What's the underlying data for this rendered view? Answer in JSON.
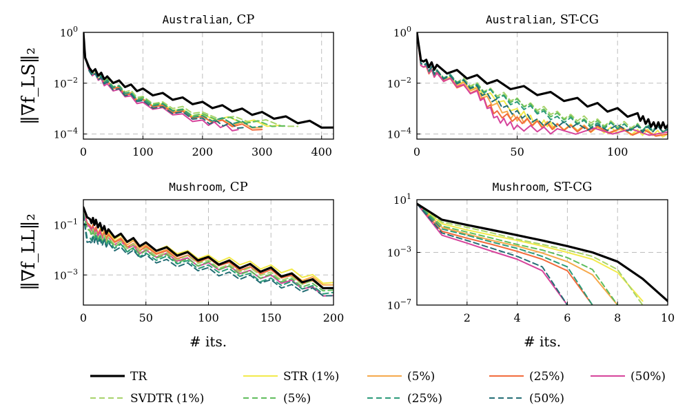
{
  "colors": {
    "TR": "#000000",
    "STR_1": "#f2ea4b",
    "STR_5": "#f6a84a",
    "STR_25": "#f26b3c",
    "STR_50": "#d6439b",
    "SVDTR_1": "#a7d36a",
    "SVDTR_5": "#5fbd5c",
    "SVDTR_25": "#2a9a78",
    "SVDTR_50": "#236d74",
    "grid": "#bdbdbd"
  },
  "labels": {
    "ylabel_top": "‖∇f_LS‖₂",
    "ylabel_bottom": "‖∇f_LL‖₂",
    "xlabel": "# its."
  },
  "legend": [
    {
      "key": "TR",
      "label": "TR",
      "dashed": false
    },
    {
      "key": "STR_1",
      "label": "STR (1%)",
      "dashed": false
    },
    {
      "key": "STR_5",
      "label": "(5%)",
      "dashed": false
    },
    {
      "key": "STR_25",
      "label": "(25%)",
      "dashed": false
    },
    {
      "key": "STR_50",
      "label": "(50%)",
      "dashed": false
    },
    {
      "key": "SVDTR_1",
      "label": "SVDTR (1%)",
      "dashed": true
    },
    {
      "key": "SVDTR_5",
      "label": "(5%)",
      "dashed": true
    },
    {
      "key": "SVDTR_25",
      "label": "(25%)",
      "dashed": true
    },
    {
      "key": "SVDTR_50",
      "label": "(50%)",
      "dashed": true
    }
  ],
  "chart_data": [
    {
      "type": "line",
      "title_dataset": "Australian",
      "title_method": ", CP",
      "xlim": [
        0,
        420
      ],
      "xticks": [
        0,
        100,
        200,
        300,
        400
      ],
      "ylim_log10": [
        -4.2,
        0
      ],
      "yticks_log10": [
        0,
        -2,
        -4
      ],
      "yticklabels": [
        "10^0",
        "10^-2",
        "10^-4"
      ],
      "series": [
        {
          "key": "TR",
          "x": [
            0,
            3,
            10,
            40,
            100,
            200,
            300,
            420
          ],
          "y": [
            1.0,
            0.1,
            0.04,
            0.015,
            0.005,
            0.0015,
            0.0006,
            0.00018
          ]
        },
        {
          "key": "STR_1",
          "x": [
            0,
            3,
            10,
            40,
            100,
            200,
            330
          ],
          "y": [
            0.8,
            0.1,
            0.03,
            0.01,
            0.002,
            0.0005,
            0.00022
          ]
        },
        {
          "key": "STR_5",
          "x": [
            0,
            3,
            10,
            40,
            100,
            200,
            300
          ],
          "y": [
            0.8,
            0.1,
            0.03,
            0.01,
            0.002,
            0.0004,
            0.00018
          ]
        },
        {
          "key": "STR_25",
          "x": [
            0,
            3,
            10,
            40,
            100,
            200,
            300
          ],
          "y": [
            0.8,
            0.1,
            0.03,
            0.01,
            0.0018,
            0.0004,
            0.00015
          ]
        },
        {
          "key": "STR_50",
          "x": [
            0,
            3,
            10,
            40,
            100,
            200,
            260
          ],
          "y": [
            0.8,
            0.1,
            0.03,
            0.008,
            0.0015,
            0.0003,
            0.00015
          ]
        },
        {
          "key": "SVDTR_1",
          "x": [
            0,
            3,
            10,
            40,
            100,
            200,
            360
          ],
          "y": [
            0.8,
            0.1,
            0.035,
            0.012,
            0.0025,
            0.0006,
            0.0002
          ]
        },
        {
          "key": "SVDTR_5",
          "x": [
            0,
            3,
            10,
            40,
            100,
            200,
            340
          ],
          "y": [
            0.8,
            0.1,
            0.035,
            0.011,
            0.0022,
            0.0005,
            0.00021
          ]
        },
        {
          "key": "SVDTR_25",
          "x": [
            0,
            3,
            10,
            40,
            100,
            200,
            300
          ],
          "y": [
            0.8,
            0.1,
            0.035,
            0.011,
            0.002,
            0.00045,
            0.0002
          ]
        },
        {
          "key": "SVDTR_50",
          "x": [
            0,
            3,
            10,
            40,
            100,
            200,
            270
          ],
          "y": [
            0.8,
            0.1,
            0.03,
            0.009,
            0.0017,
            0.00035,
            0.00018
          ]
        }
      ]
    },
    {
      "type": "line",
      "title_dataset": "Australian",
      "title_method": ", ST-CG",
      "xlim": [
        0,
        125
      ],
      "xticks": [
        0,
        50,
        100
      ],
      "ylim_log10": [
        -4.2,
        0
      ],
      "yticks_log10": [
        0,
        -2,
        -4
      ],
      "yticklabels": [
        "10^0",
        "10^-2",
        "10^-4"
      ],
      "series": [
        {
          "key": "TR",
          "x": [
            0,
            2,
            10,
            40,
            80,
            110,
            118,
            125
          ],
          "y": [
            1.0,
            0.08,
            0.04,
            0.01,
            0.002,
            0.0005,
            0.00022,
            0.00022
          ]
        },
        {
          "key": "STR_1",
          "x": [
            0,
            2,
            10,
            30,
            50,
            60,
            70,
            90,
            110,
            125
          ],
          "y": [
            1.0,
            0.05,
            0.02,
            0.006,
            0.0008,
            0.0003,
            0.0002,
            0.00015,
            0.00012,
            0.0001
          ]
        },
        {
          "key": "STR_5",
          "x": [
            0,
            2,
            10,
            30,
            45,
            55,
            70,
            90,
            125
          ],
          "y": [
            1.0,
            0.05,
            0.02,
            0.005,
            0.0006,
            0.0003,
            0.0002,
            0.00015,
            0.0001
          ]
        },
        {
          "key": "STR_25",
          "x": [
            0,
            2,
            10,
            30,
            40,
            55,
            70,
            90,
            125
          ],
          "y": [
            1.0,
            0.05,
            0.02,
            0.004,
            0.0006,
            0.0003,
            0.00018,
            0.00015,
            0.0001
          ]
        },
        {
          "key": "STR_50",
          "x": [
            0,
            2,
            10,
            30,
            40,
            50,
            70,
            125
          ],
          "y": [
            1.0,
            0.05,
            0.02,
            0.004,
            0.0004,
            0.00018,
            0.00013,
            0.00012
          ]
        },
        {
          "key": "SVDTR_1",
          "x": [
            0,
            2,
            10,
            30,
            50,
            70,
            90,
            110,
            125
          ],
          "y": [
            1.0,
            0.06,
            0.025,
            0.008,
            0.002,
            0.0006,
            0.0003,
            0.0002,
            0.00015
          ]
        },
        {
          "key": "SVDTR_5",
          "x": [
            0,
            2,
            10,
            30,
            50,
            70,
            90,
            110,
            125
          ],
          "y": [
            1.0,
            0.06,
            0.025,
            0.007,
            0.0018,
            0.0005,
            0.00025,
            0.00018,
            0.00015
          ]
        },
        {
          "key": "SVDTR_25",
          "x": [
            0,
            2,
            10,
            30,
            50,
            70,
            90,
            110,
            125
          ],
          "y": [
            1.0,
            0.06,
            0.025,
            0.007,
            0.0015,
            0.0004,
            0.00022,
            0.00018,
            0.00016
          ]
        },
        {
          "key": "SVDTR_50",
          "x": [
            0,
            2,
            10,
            30,
            45,
            60,
            80,
            110,
            125
          ],
          "y": [
            1.0,
            0.06,
            0.025,
            0.006,
            0.001,
            0.0003,
            0.0002,
            0.00016,
            0.00015
          ]
        }
      ]
    },
    {
      "type": "line",
      "title_dataset": "Mushroom",
      "title_method": ", CP",
      "xlim": [
        0,
        200
      ],
      "xticks": [
        0,
        50,
        100,
        150,
        200
      ],
      "ylim_log10": [
        -4.2,
        0
      ],
      "yticks_log10": [
        -1,
        -3
      ],
      "yticklabels": [
        "10^-1",
        "10^-3"
      ],
      "series": [
        {
          "key": "TR",
          "x": [
            0,
            3,
            10,
            20,
            50,
            100,
            150,
            200
          ],
          "y": [
            0.5,
            0.2,
            0.12,
            0.05,
            0.015,
            0.004,
            0.0015,
            0.0003
          ]
        },
        {
          "key": "STR_1",
          "x": [
            0,
            3,
            10,
            20,
            50,
            100,
            150,
            200
          ],
          "y": [
            0.4,
            0.12,
            0.06,
            0.04,
            0.015,
            0.005,
            0.002,
            0.0005
          ]
        },
        {
          "key": "STR_5",
          "x": [
            0,
            3,
            10,
            20,
            50,
            100,
            150,
            200
          ],
          "y": [
            0.4,
            0.12,
            0.06,
            0.035,
            0.012,
            0.004,
            0.0015,
            0.0004
          ]
        },
        {
          "key": "STR_25",
          "x": [
            0,
            3,
            10,
            20,
            50,
            100,
            150,
            200
          ],
          "y": [
            0.4,
            0.12,
            0.06,
            0.03,
            0.01,
            0.0035,
            0.0012,
            0.0003
          ]
        },
        {
          "key": "STR_50",
          "x": [
            0,
            3,
            10,
            20,
            50,
            100,
            150,
            200
          ],
          "y": [
            0.4,
            0.1,
            0.05,
            0.025,
            0.008,
            0.0025,
            0.0008,
            0.00015
          ]
        },
        {
          "key": "SVDTR_1",
          "x": [
            0,
            3,
            10,
            20,
            50,
            100,
            150,
            200
          ],
          "y": [
            0.3,
            0.08,
            0.04,
            0.025,
            0.009,
            0.003,
            0.001,
            0.0003
          ]
        },
        {
          "key": "SVDTR_5",
          "x": [
            0,
            3,
            10,
            20,
            50,
            100,
            150,
            200
          ],
          "y": [
            0.3,
            0.07,
            0.035,
            0.02,
            0.007,
            0.0025,
            0.0008,
            0.00025
          ]
        },
        {
          "key": "SVDTR_25",
          "x": [
            0,
            3,
            10,
            20,
            50,
            100,
            150,
            200
          ],
          "y": [
            0.25,
            0.03,
            0.03,
            0.018,
            0.006,
            0.002,
            0.0006,
            0.0002
          ]
        },
        {
          "key": "SVDTR_50",
          "x": [
            0,
            3,
            10,
            20,
            50,
            100,
            150,
            200
          ],
          "y": [
            0.25,
            0.02,
            0.025,
            0.015,
            0.005,
            0.0015,
            0.0005,
            0.00015
          ]
        }
      ]
    },
    {
      "type": "line",
      "title_dataset": "Mushroom",
      "title_method": ", ST-CG",
      "xlim": [
        0,
        10
      ],
      "xticks": [
        2,
        4,
        6,
        8,
        10
      ],
      "ylim_log10": [
        -7,
        1
      ],
      "yticks_log10": [
        1,
        -3,
        -7
      ],
      "yticklabels": [
        "10^1",
        "10^-3",
        "10^-7"
      ],
      "series": [
        {
          "key": "TR",
          "x": [
            0,
            1,
            2,
            3,
            4,
            5,
            6,
            7,
            8,
            9,
            10
          ],
          "y": [
            5,
            0.3,
            0.12,
            0.05,
            0.02,
            0.008,
            0.003,
            0.001,
            0.0002,
            1e-05,
            2e-07
          ]
        },
        {
          "key": "STR_1",
          "x": [
            0,
            1,
            2,
            3,
            4,
            5,
            6,
            7,
            8,
            9
          ],
          "y": [
            5,
            0.15,
            0.05,
            0.02,
            0.008,
            0.003,
            0.001,
            0.0003,
            3e-05,
            2e-07
          ]
        },
        {
          "key": "STR_5",
          "x": [
            0,
            1,
            2,
            3,
            4,
            5,
            6,
            7,
            8
          ],
          "y": [
            5,
            0.08,
            0.025,
            0.008,
            0.003,
            0.0009,
            0.0002,
            2e-05,
            1e-07
          ]
        },
        {
          "key": "STR_25",
          "x": [
            0,
            1,
            2,
            3,
            4,
            5,
            6,
            7
          ],
          "y": [
            5,
            0.04,
            0.012,
            0.004,
            0.0012,
            0.0003,
            4e-05,
            1e-07
          ]
        },
        {
          "key": "STR_50",
          "x": [
            0,
            1,
            2,
            3,
            4,
            5,
            6
          ],
          "y": [
            5,
            0.02,
            0.005,
            0.0012,
            0.0003,
            4e-05,
            1e-07
          ]
        },
        {
          "key": "SVDTR_1",
          "x": [
            0,
            1,
            2,
            3,
            4,
            5,
            6,
            7,
            8,
            9
          ],
          "y": [
            5,
            0.2,
            0.08,
            0.03,
            0.01,
            0.004,
            0.0015,
            0.0005,
            5e-05,
            1e-07
          ]
        },
        {
          "key": "SVDTR_5",
          "x": [
            0,
            1,
            2,
            3,
            4,
            5,
            6,
            7,
            8
          ],
          "y": [
            5,
            0.1,
            0.035,
            0.012,
            0.004,
            0.0015,
            0.0004,
            5e-05,
            1e-07
          ]
        },
        {
          "key": "SVDTR_25",
          "x": [
            0,
            1,
            2,
            3,
            4,
            5,
            6,
            7
          ],
          "y": [
            5,
            0.06,
            0.02,
            0.006,
            0.002,
            0.0005,
            8e-05,
            1e-07
          ]
        },
        {
          "key": "SVDTR_50",
          "x": [
            0,
            1,
            2,
            3,
            4,
            5,
            6
          ],
          "y": [
            5,
            0.03,
            0.008,
            0.002,
            0.0005,
            8e-05,
            1e-07
          ]
        }
      ]
    }
  ]
}
